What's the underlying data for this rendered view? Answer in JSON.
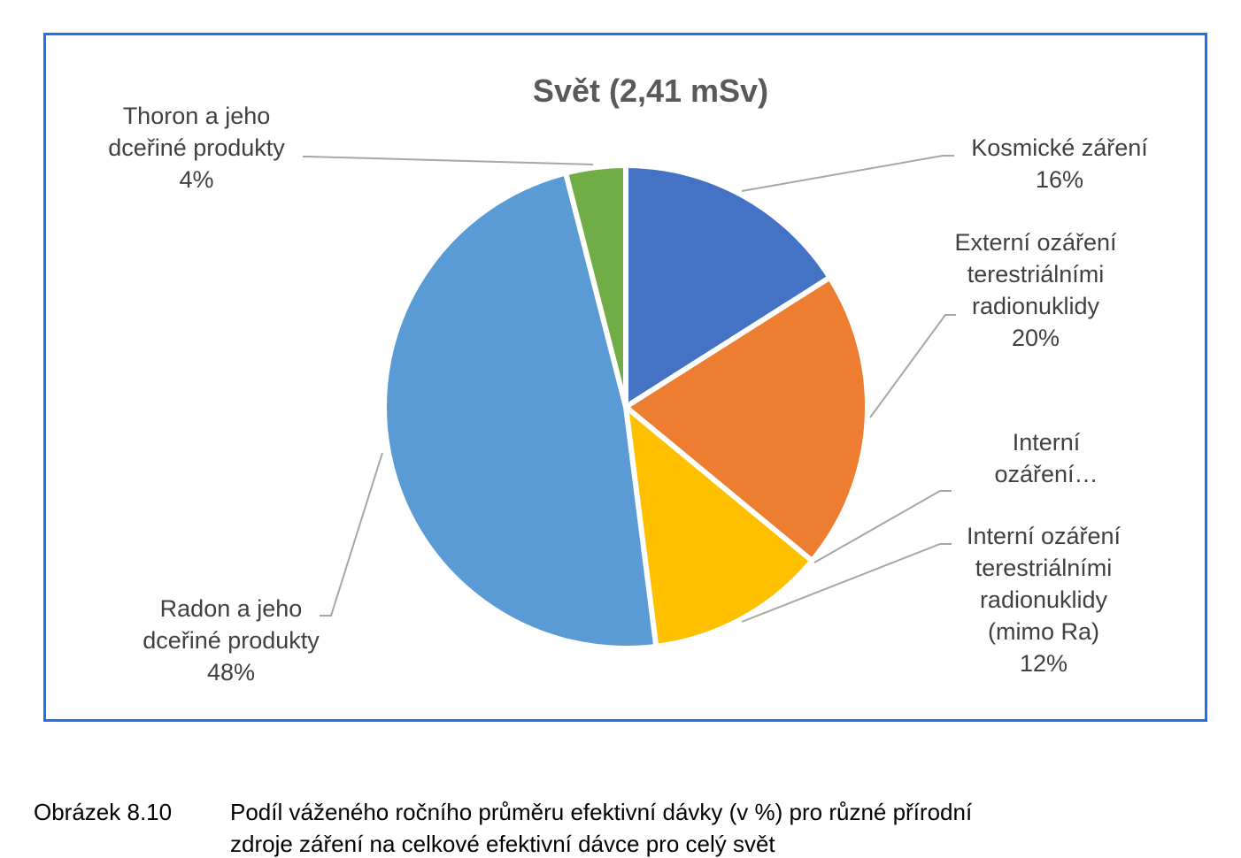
{
  "chart_data": {
    "type": "pie",
    "title": "Svět (2,41 mSv)",
    "slices": [
      {
        "name": "Kosmické záření",
        "lines": [
          "Kosmické záření",
          "16%"
        ],
        "value": 16,
        "color": "#4472c4"
      },
      {
        "name": "Externí ozáření terestriálními radionuklidy",
        "lines": [
          "Externí ozáření",
          "terestriálními",
          "radionuklidy",
          "20%"
        ],
        "value": 20,
        "color": "#ed7d31"
      },
      {
        "name": "Interní ozáření…",
        "lines": [
          "Interní",
          "ozáření…"
        ],
        "value": 0,
        "color": "#a5a5a5"
      },
      {
        "name": "Interní ozáření terestriálními radionuklidy (mimo Ra)",
        "lines": [
          "Interní ozáření",
          "terestriálními",
          "radionuklidy",
          "(mimo Ra)",
          "12%"
        ],
        "value": 12,
        "color": "#ffc000"
      },
      {
        "name": "Radon a jeho dceřiné produkty",
        "lines": [
          "Radon a jeho",
          "dceřiné produkty",
          "48%"
        ],
        "value": 48,
        "color": "#5b9bd5"
      },
      {
        "name": "Thoron a jeho dceřiné produkty",
        "lines": [
          "Thoron a jeho",
          "dceřiné produkty",
          "4%"
        ],
        "value": 4,
        "color": "#70ad47"
      }
    ],
    "legend": "none (data labels with leader lines)"
  },
  "caption": {
    "number": "Obrázek 8.10",
    "line1": "Podíl váženého  ročního průměru  efektivní dávky (v %) pro různé přírodní",
    "line2": "zdroje záření na celkové efektivní dávce pro celý svět"
  }
}
